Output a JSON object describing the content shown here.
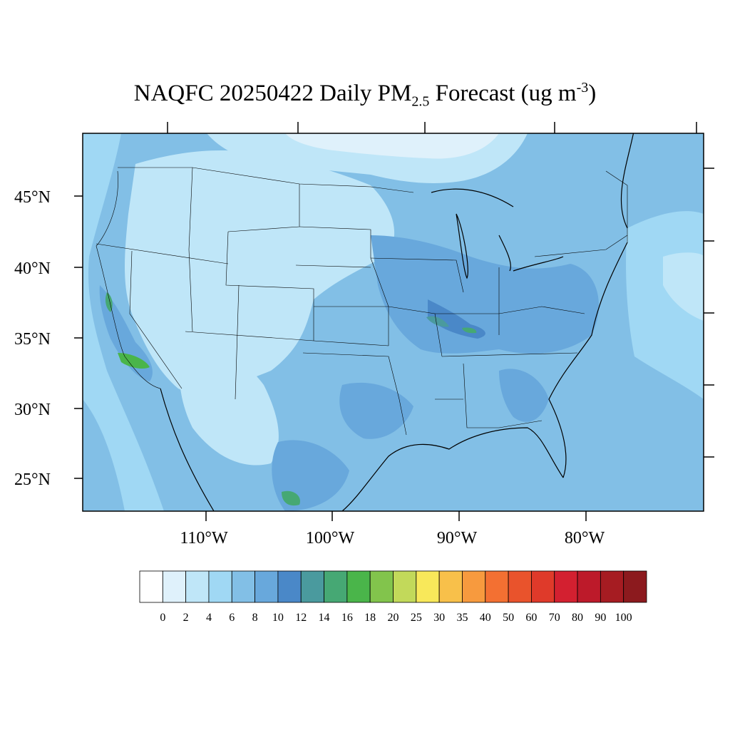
{
  "title": {
    "main": "NAQFC 20250422 Daily PM",
    "subscript": "2.5",
    "rest": " Forecast (ug m",
    "superscript": "-3",
    "close": ")"
  },
  "lat_labels": [
    "45°N",
    "40°N",
    "35°N",
    "30°N",
    "25°N"
  ],
  "lon_labels": [
    "110°W",
    "100°W",
    "90°W",
    "80°W"
  ],
  "colorbar": {
    "labels": [
      "0",
      "2",
      "4",
      "6",
      "8",
      "10",
      "12",
      "14",
      "16",
      "18",
      "20",
      "25",
      "30",
      "35",
      "40",
      "50",
      "60",
      "70",
      "80",
      "90",
      "100"
    ],
    "colors": [
      "#ffffff",
      "#dff1fb",
      "#bfe6f8",
      "#a0d8f4",
      "#82bfe6",
      "#68a8dc",
      "#4a88c8",
      "#4a9a9e",
      "#46a874",
      "#4ab54a",
      "#82c44c",
      "#c2d95a",
      "#f8e85a",
      "#f8c04a",
      "#f79a3e",
      "#f37032",
      "#e9532c",
      "#df3a2a",
      "#d32030",
      "#bd1a2a",
      "#a61c22",
      "#8c1a1e"
    ]
  },
  "legend_levels": "ug m-3"
}
